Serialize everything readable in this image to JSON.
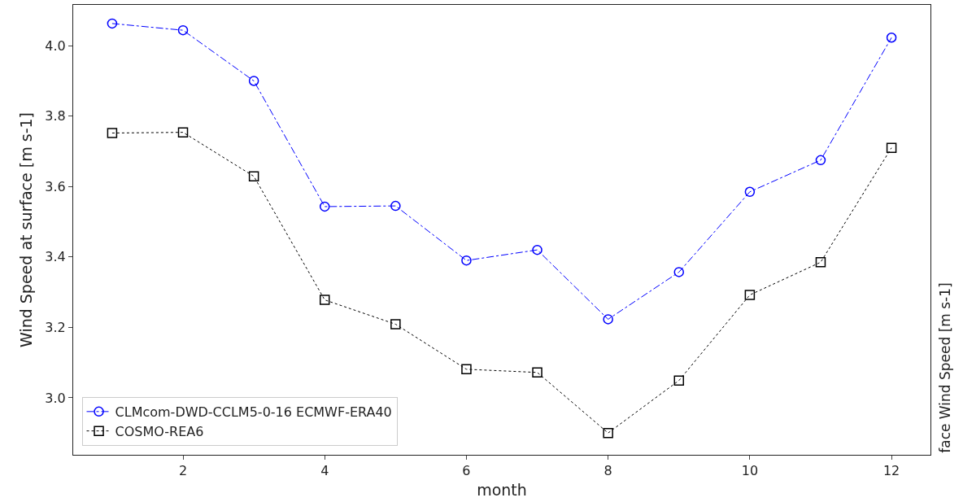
{
  "chart_data": {
    "type": "line",
    "xlabel": "month",
    "ylabel": "Wind Speed at surface [m s-1]",
    "x": [
      1,
      2,
      3,
      4,
      5,
      6,
      7,
      8,
      9,
      10,
      11,
      12
    ],
    "series": [
      {
        "name": "CLMcom-DWD-CCLM5-0-16 ECMWF-ERA40",
        "color": "#0000ff",
        "marker": "circle",
        "line_style": "dashdot",
        "values": [
          4.063,
          4.044,
          3.9,
          3.543,
          3.545,
          3.39,
          3.42,
          3.223,
          3.357,
          3.585,
          3.675,
          4.023
        ]
      },
      {
        "name": "COSMO-REA6",
        "color": "#000000",
        "marker": "square",
        "line_style": "dotted",
        "values": [
          3.752,
          3.754,
          3.629,
          3.278,
          3.209,
          3.081,
          3.072,
          2.9,
          3.049,
          3.292,
          3.385,
          3.71
        ]
      }
    ],
    "xlim": [
      0.45,
      12.55
    ],
    "ylim": [
      2.838,
      4.116
    ],
    "xticks": [
      2,
      4,
      6,
      8,
      10,
      12
    ],
    "yticks": [
      {
        "value": 3,
        "label": "3.0"
      },
      {
        "value": 3.2,
        "label": "3.2"
      },
      {
        "value": 3.4,
        "label": "3.4"
      },
      {
        "value": 3.6,
        "label": "3.6"
      },
      {
        "value": 3.8,
        "label": "3.8"
      },
      {
        "value": 4,
        "label": "4.0"
      }
    ],
    "grid": false,
    "legend": "bottom left",
    "annotations": [
      "face Wind Speed [m s-1]"
    ]
  }
}
